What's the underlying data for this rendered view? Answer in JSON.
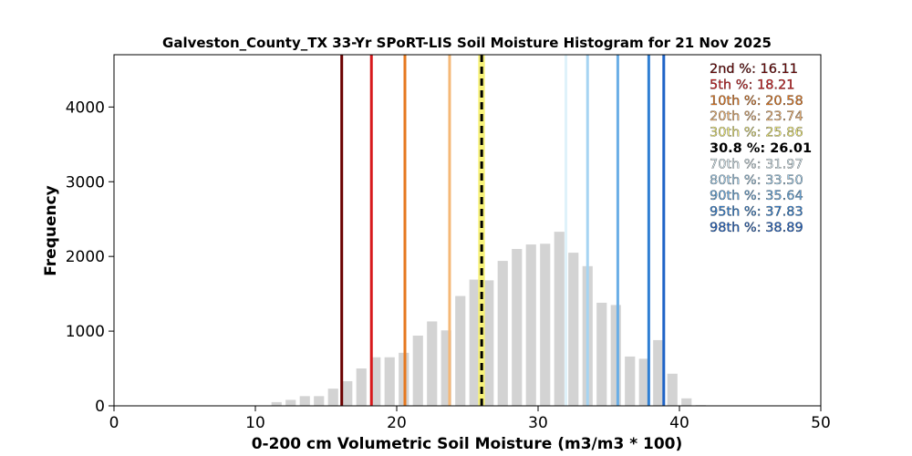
{
  "chart_data": {
    "type": "bar",
    "title": "Galveston_County_TX 33-Yr SPoRT-LIS Soil Moisture Histogram for 21 Nov 2025",
    "xlabel": "0-200 cm Volumetric Soil Moisture (m3/m3 * 100)",
    "ylabel": "Frequency",
    "xlim": [
      0,
      50
    ],
    "ylim": [
      0,
      4700
    ],
    "x_ticks": [
      "0",
      "10",
      "20",
      "30",
      "40",
      "50"
    ],
    "y_ticks": [
      "0",
      "1000",
      "2000",
      "3000",
      "4000"
    ],
    "grid": false,
    "bar_color": "#d3d3d3",
    "bins": [
      {
        "x": 11.5,
        "count": 50
      },
      {
        "x": 12.5,
        "count": 80
      },
      {
        "x": 13.5,
        "count": 130
      },
      {
        "x": 14.5,
        "count": 130
      },
      {
        "x": 15.5,
        "count": 230
      },
      {
        "x": 16.5,
        "count": 330
      },
      {
        "x": 17.5,
        "count": 500
      },
      {
        "x": 18.5,
        "count": 650
      },
      {
        "x": 19.5,
        "count": 650
      },
      {
        "x": 20.5,
        "count": 710
      },
      {
        "x": 21.5,
        "count": 940
      },
      {
        "x": 22.5,
        "count": 1130
      },
      {
        "x": 23.5,
        "count": 1010
      },
      {
        "x": 24.5,
        "count": 1470
      },
      {
        "x": 25.5,
        "count": 1690
      },
      {
        "x": 26.5,
        "count": 1680
      },
      {
        "x": 27.5,
        "count": 1940
      },
      {
        "x": 28.5,
        "count": 2100
      },
      {
        "x": 29.5,
        "count": 2160
      },
      {
        "x": 30.5,
        "count": 2170
      },
      {
        "x": 31.5,
        "count": 2330
      },
      {
        "x": 32.5,
        "count": 2050
      },
      {
        "x": 33.5,
        "count": 1870
      },
      {
        "x": 34.5,
        "count": 1380
      },
      {
        "x": 35.5,
        "count": 1350
      },
      {
        "x": 36.5,
        "count": 660
      },
      {
        "x": 37.5,
        "count": 630
      },
      {
        "x": 38.5,
        "count": 880
      },
      {
        "x": 39.5,
        "count": 430
      },
      {
        "x": 40.5,
        "count": 100
      },
      {
        "x": 41.5,
        "count": 10
      }
    ],
    "percentiles": [
      {
        "label": "2nd %: 16.11",
        "value": 16.11,
        "color": "#6b0000",
        "dashed": false
      },
      {
        "label": "5th %: 18.21",
        "value": 18.21,
        "color": "#d7191c",
        "dashed": false
      },
      {
        "label": "10th %: 20.58",
        "value": 20.58,
        "color": "#e6781e",
        "dashed": false
      },
      {
        "label": "20th %: 23.74",
        "value": 23.74,
        "color": "#f5b877",
        "dashed": false
      },
      {
        "label": "30th %: 25.86",
        "value": 25.86,
        "color": "#f7f27a",
        "dashed": false
      },
      {
        "label": "30.8 %: 26.01",
        "value": 26.01,
        "color": "#000000",
        "dashed": true
      },
      {
        "label": "70th %: 31.97",
        "value": 31.97,
        "color": "#dff2fa",
        "dashed": false
      },
      {
        "label": "80th %: 33.50",
        "value": 33.5,
        "color": "#a6d4f2",
        "dashed": false
      },
      {
        "label": "90th %: 35.64",
        "value": 35.64,
        "color": "#6aaee6",
        "dashed": false
      },
      {
        "label": "95th %: 37.83",
        "value": 37.83,
        "color": "#2f7fd3",
        "dashed": false
      },
      {
        "label": "98th %: 38.89",
        "value": 38.89,
        "color": "#1f63c7",
        "dashed": false
      }
    ],
    "legend_position": "top-right"
  }
}
